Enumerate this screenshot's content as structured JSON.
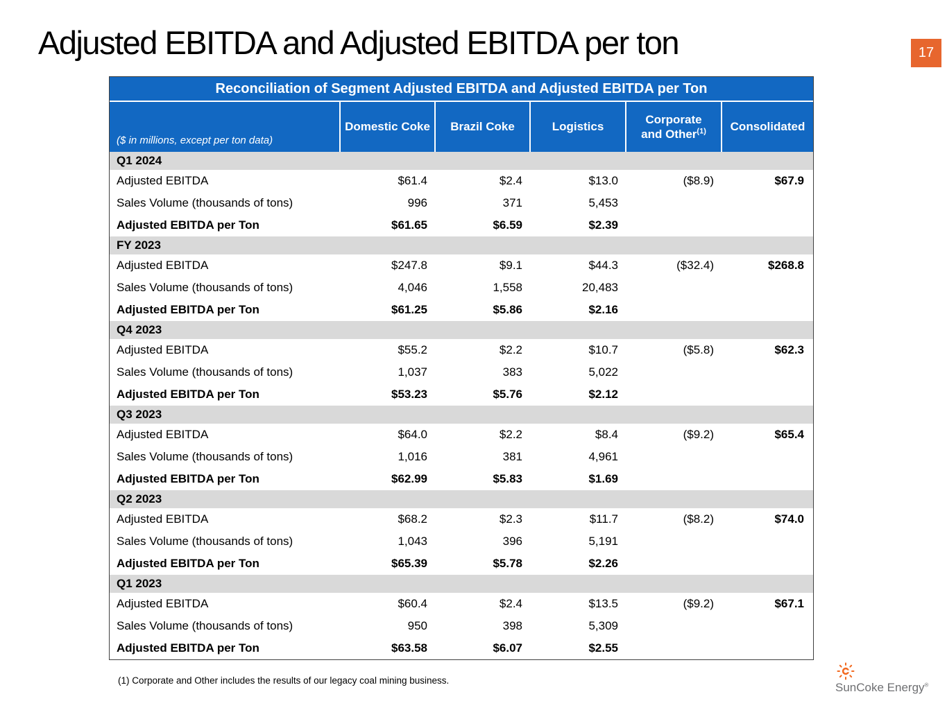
{
  "slide": {
    "title": "Adjusted EBITDA and Adjusted EBITDA per ton",
    "page_number": "17"
  },
  "table": {
    "title": "Reconciliation of Segment Adjusted EBITDA and Adjusted EBITDA per Ton",
    "unit_note": "($ in millions, except per ton data)",
    "columns": [
      {
        "label": "Domestic Coke"
      },
      {
        "label": "Brazil Coke"
      },
      {
        "label": "Logistics"
      },
      {
        "label": "Corporate and Other",
        "sup": "(1)"
      },
      {
        "label": "Consolidated"
      }
    ],
    "sections": [
      {
        "label": "Q1 2024",
        "rows": [
          {
            "label": "Adjusted EBITDA",
            "values": [
              "$61.4",
              "$2.4",
              "$13.0",
              "($8.9)",
              "$67.9"
            ],
            "bold": false
          },
          {
            "label": "Sales Volume (thousands of tons)",
            "values": [
              "996",
              "371",
              "5,453",
              "",
              ""
            ],
            "bold": false
          },
          {
            "label": "Adjusted EBITDA per Ton",
            "values": [
              "$61.65",
              "$6.59",
              "$2.39",
              "",
              ""
            ],
            "bold": true
          }
        ]
      },
      {
        "label": "FY 2023",
        "rows": [
          {
            "label": "Adjusted EBITDA",
            "values": [
              "$247.8",
              "$9.1",
              "$44.3",
              "($32.4)",
              "$268.8"
            ],
            "bold": false
          },
          {
            "label": "Sales Volume (thousands of tons)",
            "values": [
              "4,046",
              "1,558",
              "20,483",
              "",
              ""
            ],
            "bold": false
          },
          {
            "label": "Adjusted EBITDA per Ton",
            "values": [
              "$61.25",
              "$5.86",
              "$2.16",
              "",
              ""
            ],
            "bold": true
          }
        ]
      },
      {
        "label": "Q4 2023",
        "rows": [
          {
            "label": "Adjusted EBITDA",
            "values": [
              "$55.2",
              "$2.2",
              "$10.7",
              "($5.8)",
              "$62.3"
            ],
            "bold": false
          },
          {
            "label": "Sales Volume (thousands of tons)",
            "values": [
              "1,037",
              "383",
              "5,022",
              "",
              ""
            ],
            "bold": false
          },
          {
            "label": "Adjusted EBITDA per Ton",
            "values": [
              "$53.23",
              "$5.76",
              "$2.12",
              "",
              ""
            ],
            "bold": true
          }
        ]
      },
      {
        "label": "Q3 2023",
        "rows": [
          {
            "label": "Adjusted EBITDA",
            "values": [
              "$64.0",
              "$2.2",
              "$8.4",
              "($9.2)",
              "$65.4"
            ],
            "bold": false
          },
          {
            "label": "Sales Volume (thousands of tons)",
            "values": [
              "1,016",
              "381",
              "4,961",
              "",
              ""
            ],
            "bold": false
          },
          {
            "label": "Adjusted EBITDA per Ton",
            "values": [
              "$62.99",
              "$5.83",
              "$1.69",
              "",
              ""
            ],
            "bold": true
          }
        ]
      },
      {
        "label": "Q2 2023",
        "rows": [
          {
            "label": "Adjusted EBITDA",
            "values": [
              "$68.2",
              "$2.3",
              "$11.7",
              "($8.2)",
              "$74.0"
            ],
            "bold": false
          },
          {
            "label": "Sales Volume (thousands of tons)",
            "values": [
              "1,043",
              "396",
              "5,191",
              "",
              ""
            ],
            "bold": false
          },
          {
            "label": "Adjusted EBITDA per Ton",
            "values": [
              "$65.39",
              "$5.78",
              "$2.26",
              "",
              ""
            ],
            "bold": true
          }
        ]
      },
      {
        "label": "Q1 2023",
        "rows": [
          {
            "label": "Adjusted EBITDA",
            "values": [
              "$60.4",
              "$2.4",
              "$13.5",
              "($9.2)",
              "$67.1"
            ],
            "bold": false
          },
          {
            "label": "Sales Volume (thousands of tons)",
            "values": [
              "950",
              "398",
              "5,309",
              "",
              ""
            ],
            "bold": false
          },
          {
            "label": "Adjusted EBITDA per Ton",
            "values": [
              "$63.58",
              "$6.07",
              "$2.55",
              "",
              ""
            ],
            "bold": true
          }
        ]
      }
    ]
  },
  "footnote": "(1) Corporate and Other includes the results of our legacy coal mining business.",
  "logo": {
    "name": "SunCoke Energy",
    "registered": "®"
  },
  "colors": {
    "header_blue": "#1268C2",
    "section_band_gray": "#D9D9D9",
    "page_box_orange": "#E7662E",
    "logo_orange": "#F26A21",
    "logo_text_gray": "#6E6F72"
  }
}
